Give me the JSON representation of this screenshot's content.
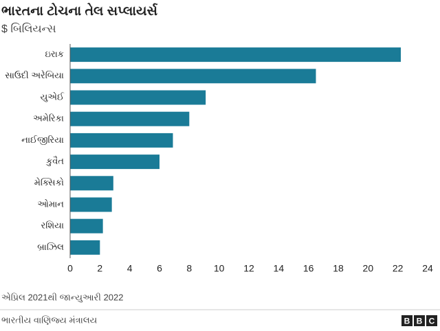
{
  "chart_data": {
    "type": "bar",
    "orientation": "horizontal",
    "title": "ભારતના ટોચના તેલ સપ્લાયર્સ",
    "subtitle": "$ બિલિયન્સ",
    "categories": [
      "ઇરાક",
      "સાઉદી અરેબિયા",
      "યુએઈ",
      "અમેરિકા",
      "નાઈજીરિયા",
      "કુવૈત",
      "મેક્સિકો",
      "ઓમાન",
      "રશિયા",
      "બ્રાઝિલ"
    ],
    "values": [
      22.2,
      16.5,
      9.1,
      8.0,
      6.9,
      6.0,
      2.9,
      2.8,
      2.2,
      2.0
    ],
    "color": "#1a7b97",
    "xlim": [
      0,
      24
    ],
    "xticks": [
      0,
      2,
      4,
      6,
      8,
      10,
      12,
      14,
      16,
      18,
      20,
      22,
      24
    ],
    "grid": false,
    "note": "એપ્રિલ 2021થી જાન્યુઆરી 2022",
    "source": "ભારતીય વાણિજ્ય મંત્રાલય",
    "logo": [
      "B",
      "B",
      "C"
    ]
  }
}
